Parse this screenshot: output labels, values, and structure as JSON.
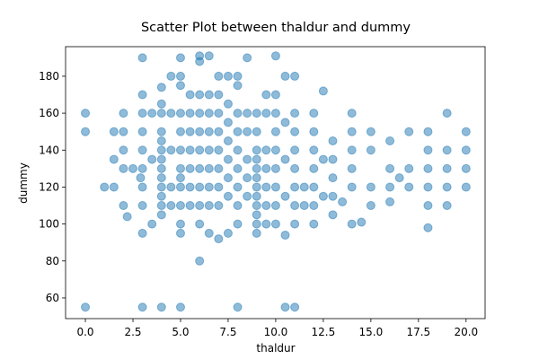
{
  "chart_data": {
    "type": "scatter",
    "title": "Scatter Plot between thaldur and dummy",
    "x_label": "thaldur",
    "y_label": "dummy",
    "xlim": [
      -1.04,
      21.0
    ],
    "ylim": [
      48.8,
      196
    ],
    "xticks": [
      {
        "value": 0,
        "label": "0.0"
      },
      2.5,
      {
        "value": 5,
        "label": "5.0"
      },
      7.5,
      {
        "value": 10,
        "label": "10.0"
      },
      12.5,
      {
        "value": 15,
        "label": "15.0"
      },
      17.5,
      {
        "value": 20,
        "label": "20.0"
      }
    ],
    "yticks": [
      60,
      80,
      100,
      120,
      140,
      160,
      180
    ],
    "x": [
      0,
      0,
      0,
      1,
      1.5,
      1.5,
      1.5,
      2,
      2,
      2,
      2,
      2,
      2.2,
      2.5,
      3,
      3,
      3,
      3,
      3,
      3,
      3,
      3,
      3,
      3,
      2.9,
      3.5,
      3.5,
      3.5,
      4,
      4,
      4,
      4,
      4,
      4,
      4,
      4,
      4,
      4,
      4,
      4,
      4,
      4,
      4.5,
      4.5,
      4.5,
      4.5,
      4.5,
      5,
      5,
      5,
      5,
      5,
      5,
      5,
      5,
      5,
      5,
      5,
      5,
      5,
      5.5,
      5.5,
      5.5,
      5.5,
      5.5,
      5.5,
      5.5,
      6,
      6,
      6,
      6,
      6,
      6,
      6,
      6,
      6,
      6,
      6,
      6.5,
      6.5,
      6.5,
      6.5,
      6.5,
      6.5,
      6.5,
      6.5,
      6.5,
      7,
      7,
      7,
      7,
      7,
      7,
      7,
      7,
      7,
      7.5,
      7.5,
      7.5,
      7.5,
      7.5,
      7.5,
      7.5,
      7.5,
      8,
      8,
      8,
      8,
      8,
      8,
      8,
      8,
      8,
      8,
      8.5,
      8.5,
      8.5,
      8.5,
      8.5,
      8.5,
      9,
      9,
      9,
      9,
      9,
      9,
      9,
      9,
      9,
      9,
      9,
      9,
      9.5,
      9.5,
      9.5,
      9.5,
      9.5,
      9.5,
      9.5,
      10,
      10,
      10,
      10,
      10,
      10,
      10,
      10,
      10,
      10.5,
      10.5,
      10.5,
      10.5,
      10.5,
      10.5,
      11,
      11,
      11,
      11,
      11,
      11,
      11,
      11,
      11,
      11.5,
      11.5,
      12,
      12,
      12,
      12,
      12,
      12,
      12,
      12.5,
      12.5,
      12.5,
      13,
      13,
      13,
      13,
      13,
      13.5,
      14,
      14,
      14,
      14,
      14,
      14,
      14.5,
      15,
      15,
      15,
      15,
      16,
      16,
      16,
      16,
      16.5,
      17,
      17,
      17,
      18,
      18,
      18,
      18,
      18,
      18,
      19,
      19,
      19,
      19,
      19,
      20,
      20,
      20,
      20
    ],
    "series": [
      {
        "color": "#1f77b4",
        "values": [
          55,
          160,
          150,
          120,
          150,
          135,
          120,
          160,
          150,
          140,
          130,
          110,
          104,
          130,
          190,
          170,
          160,
          150,
          140,
          130,
          120,
          110,
          95,
          55,
          125,
          160,
          135,
          100,
          174,
          165,
          160,
          150,
          145,
          140,
          135,
          130,
          125,
          120,
          115,
          110,
          105,
          55,
          180,
          160,
          140,
          120,
          110,
          190,
          180,
          175,
          160,
          150,
          140,
          130,
          125,
          120,
          110,
          100,
          95,
          55,
          170,
          160,
          150,
          140,
          130,
          120,
          110,
          191,
          188,
          170,
          160,
          150,
          140,
          130,
          120,
          110,
          100,
          80,
          191,
          170,
          160,
          150,
          140,
          130,
          120,
          110,
          95,
          180,
          170,
          160,
          150,
          140,
          130,
          120,
          110,
          92,
          180,
          165,
          155,
          145,
          135,
          125,
          115,
          95,
          180,
          175,
          160,
          150,
          140,
          130,
          120,
          110,
          100,
          55,
          190,
          160,
          150,
          135,
          125,
          115,
          160,
          150,
          140,
          135,
          130,
          125,
          120,
          115,
          110,
          105,
          100,
          95,
          170,
          160,
          140,
          130,
          120,
          110,
          100,
          191,
          170,
          160,
          150,
          140,
          130,
          120,
          110,
          100,
          180,
          155,
          135,
          115,
          94,
          55,
          180,
          160,
          150,
          140,
          130,
          120,
          110,
          100,
          55,
          110,
          120,
          160,
          150,
          140,
          130,
          120,
          110,
          100,
          172,
          135,
          115,
          145,
          135,
          125,
          115,
          105,
          112,
          160,
          150,
          140,
          130,
          120,
          100,
          101,
          150,
          140,
          120,
          110,
          145,
          130,
          120,
          112,
          125,
          150,
          130,
          120,
          150,
          140,
          130,
          120,
          110,
          98,
          160,
          140,
          130,
          120,
          110,
          150,
          140,
          130,
          120
        ]
      }
    ]
  }
}
